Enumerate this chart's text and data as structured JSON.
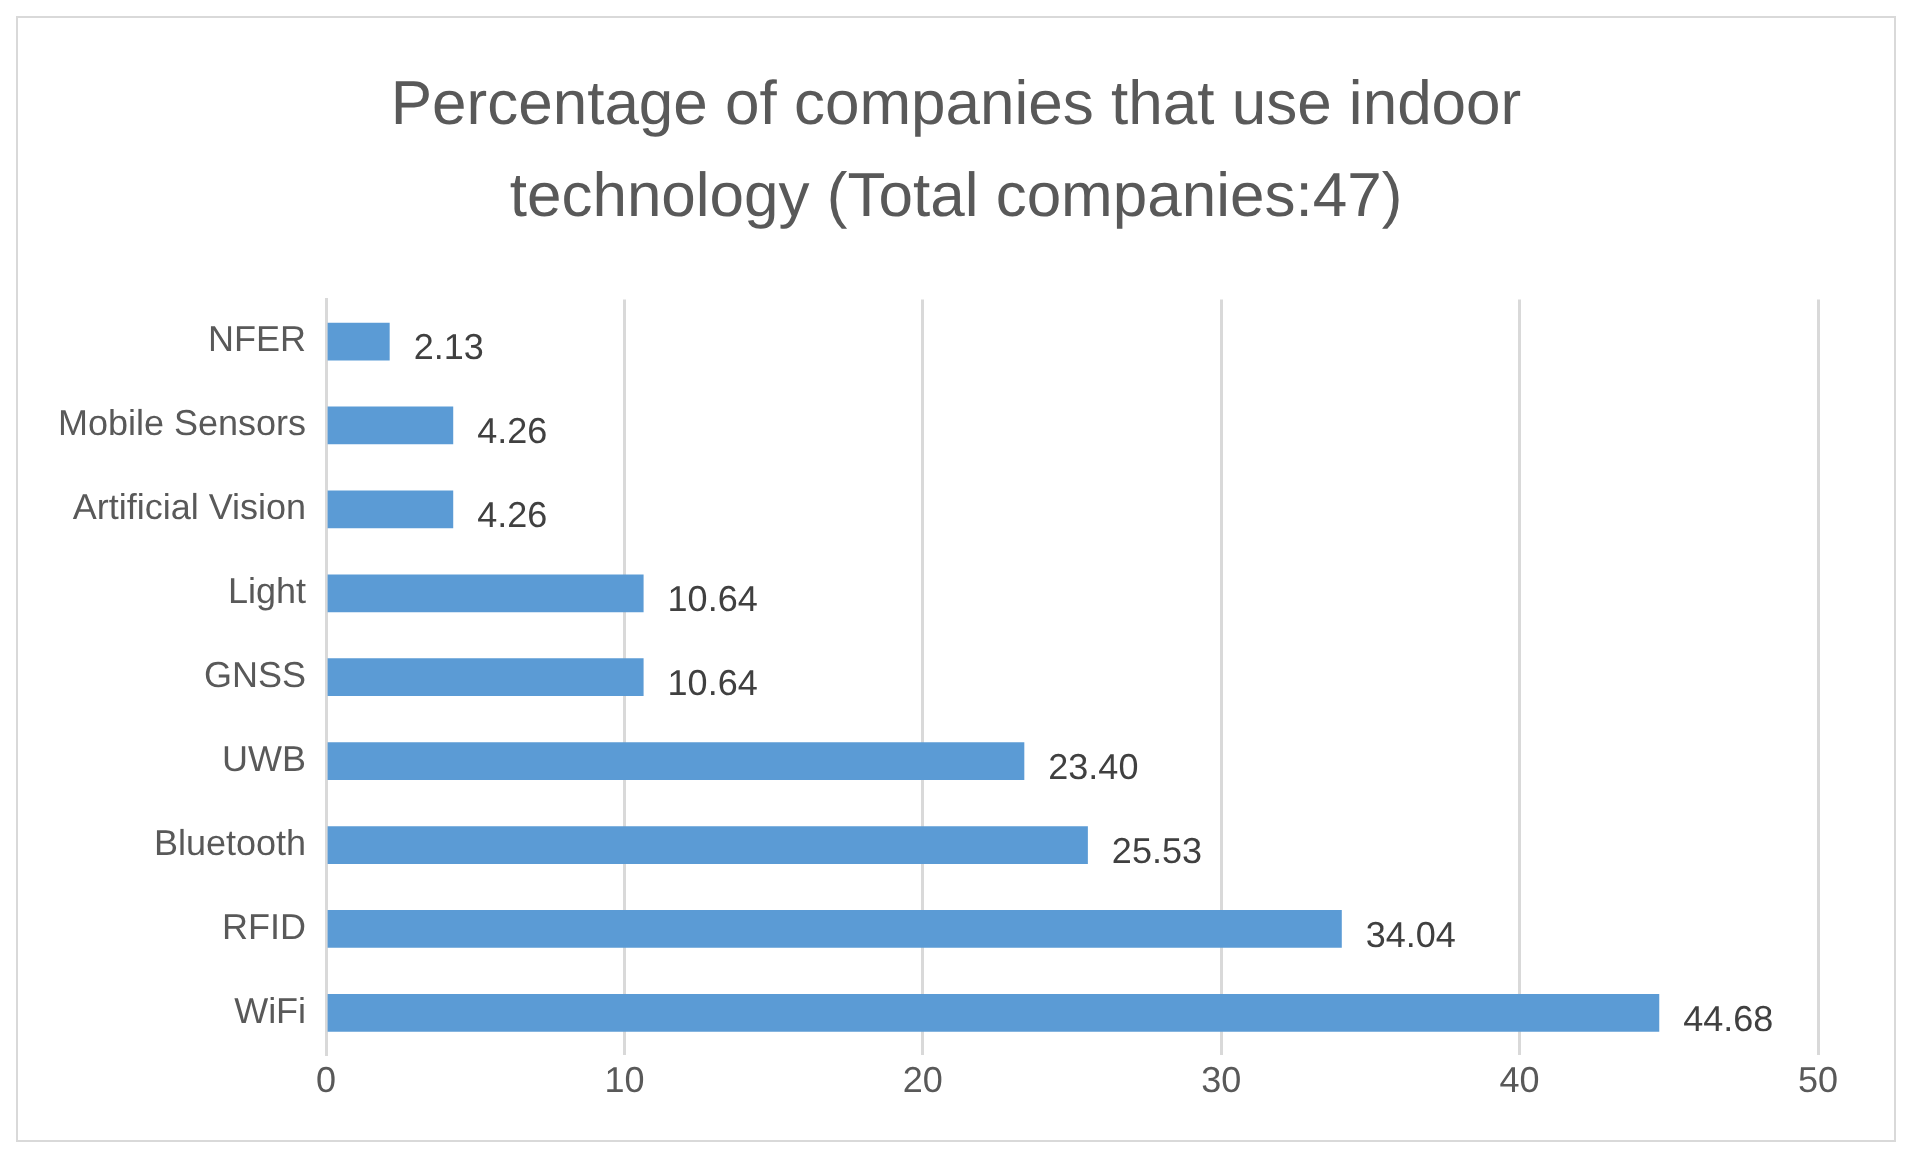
{
  "chart_data": {
    "type": "bar",
    "orientation": "horizontal",
    "title": "Percentage of companies that use indoor technology (Total companies:47)",
    "categories": [
      "NFER",
      "Mobile Sensors",
      "Artificial Vision",
      "Light",
      "GNSS",
      "UWB",
      "Bluetooth",
      "RFID",
      "WiFi"
    ],
    "values": [
      2.13,
      4.26,
      4.26,
      10.64,
      10.64,
      23.4,
      25.53,
      34.04,
      44.68
    ],
    "value_labels": [
      "2.13",
      "4.26",
      "4.26",
      "10.64",
      "10.64",
      "23.40",
      "25.53",
      "34.04",
      "44.68"
    ],
    "color": "#5b9bd5",
    "xlim": [
      0,
      50
    ],
    "xticks": [
      0,
      10,
      20,
      30,
      40,
      50
    ],
    "grid": "x",
    "legend": false
  }
}
